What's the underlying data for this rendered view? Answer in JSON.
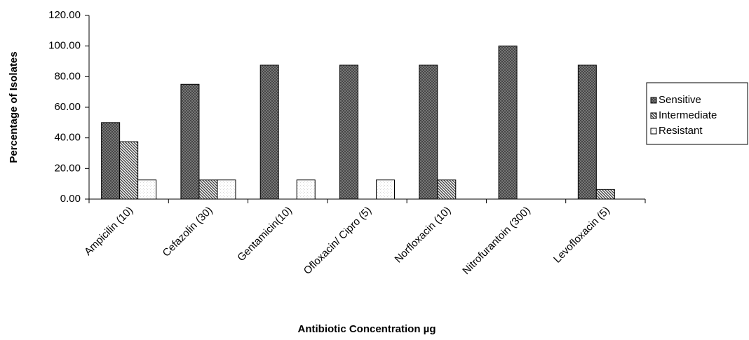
{
  "chart_data": {
    "type": "bar",
    "x_label": "Antibiotic Concentration µg",
    "y_label": "Percentage of Isolates",
    "categories": [
      "Ampicilin (10)",
      "Cefazolin (30)",
      "Gentamicin(10)",
      "Ofloxacin/ Cipro (5)",
      "Norfloxacin (10)",
      "Nitrofurantoin (300)",
      "Levofloxacin (5)"
    ],
    "series": [
      {
        "name": "Sensitive",
        "color": "#808080",
        "values": [
          50,
          75,
          87.5,
          87.5,
          87.5,
          100,
          87.5
        ]
      },
      {
        "name": "Intermediate",
        "color": "#404040",
        "values": [
          37.5,
          12.5,
          0,
          0,
          12.5,
          0,
          6.25
        ]
      },
      {
        "name": "Resistant",
        "color": "#d8d8d8",
        "values": [
          12.5,
          12.5,
          12.5,
          12.5,
          0,
          0,
          0
        ]
      }
    ],
    "ylim": [
      0,
      120
    ],
    "yticks": [
      {
        "value": 0,
        "label": "0.00"
      },
      {
        "value": 20,
        "label": "20.00"
      },
      {
        "value": 40,
        "label": "40.00"
      },
      {
        "value": 60,
        "label": "60.00"
      },
      {
        "value": 80,
        "label": "80.00"
      },
      {
        "value": 100,
        "label": "100.00"
      },
      {
        "value": 120,
        "label": "120.00"
      }
    ],
    "legend": "right"
  }
}
